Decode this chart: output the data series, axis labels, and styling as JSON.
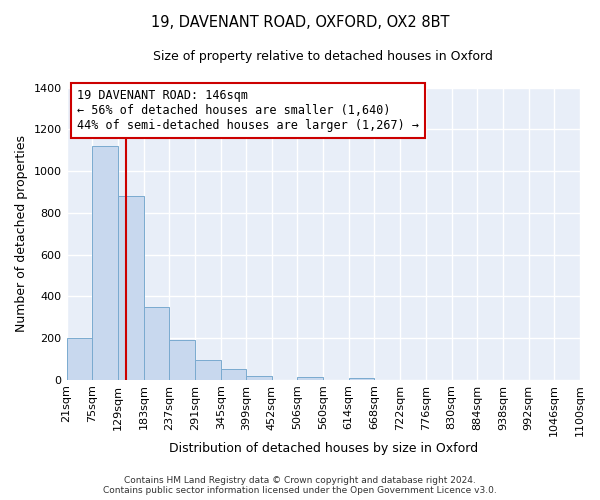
{
  "title": "19, DAVENANT ROAD, OXFORD, OX2 8BT",
  "subtitle": "Size of property relative to detached houses in Oxford",
  "xlabel": "Distribution of detached houses by size in Oxford",
  "ylabel": "Number of detached properties",
  "bar_heights": [
    200,
    1120,
    880,
    350,
    190,
    95,
    52,
    18,
    0,
    13,
    0,
    7
  ],
  "bin_edges": [
    21,
    75,
    129,
    183,
    237,
    291,
    345,
    399,
    452,
    506,
    560,
    614,
    668
  ],
  "all_tick_labels": [
    "21sqm",
    "75sqm",
    "129sqm",
    "183sqm",
    "237sqm",
    "291sqm",
    "345sqm",
    "399sqm",
    "452sqm",
    "506sqm",
    "560sqm",
    "614sqm",
    "668sqm",
    "722sqm",
    "776sqm",
    "830sqm",
    "884sqm",
    "938sqm",
    "992sqm",
    "1046sqm",
    "1100sqm"
  ],
  "all_tick_positions": [
    21,
    75,
    129,
    183,
    237,
    291,
    345,
    399,
    452,
    506,
    560,
    614,
    668,
    722,
    776,
    830,
    884,
    938,
    992,
    1046,
    1100
  ],
  "xlim": [
    21,
    1100
  ],
  "ylim": [
    0,
    1400
  ],
  "bar_color": "#c8d8ee",
  "bar_edge_color": "#7aaacf",
  "vline_x": 146,
  "vline_color": "#cc0000",
  "annotation_line1": "19 DAVENANT ROAD: 146sqm",
  "annotation_line2": "← 56% of detached houses are smaller (1,640)",
  "annotation_line3": "44% of semi-detached houses are larger (1,267) →",
  "box_edge_color": "#cc0000",
  "footer_line1": "Contains HM Land Registry data © Crown copyright and database right 2024.",
  "footer_line2": "Contains public sector information licensed under the Open Government Licence v3.0.",
  "background_color": "#ffffff",
  "plot_bg_color": "#e8eef8",
  "grid_color": "#ffffff",
  "yticks": [
    0,
    200,
    400,
    600,
    800,
    1000,
    1200,
    1400
  ],
  "annotation_fontsize": 8.5,
  "title_fontsize": 10.5,
  "subtitle_fontsize": 9,
  "xlabel_fontsize": 9,
  "ylabel_fontsize": 9,
  "tick_fontsize": 8,
  "footer_fontsize": 6.5
}
